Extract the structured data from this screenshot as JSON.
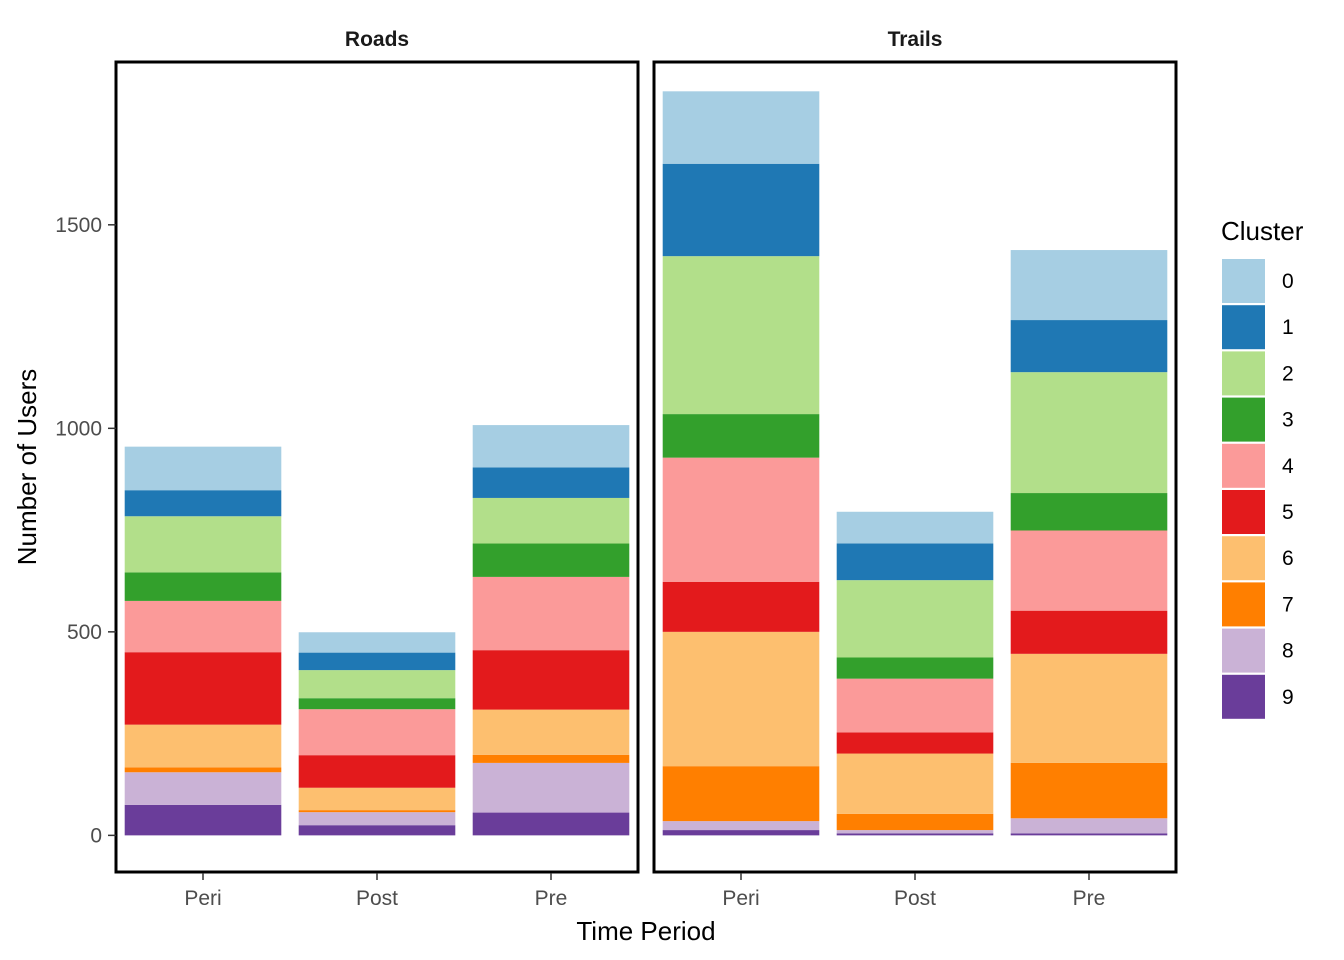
{
  "chart_data": {
    "type": "bar",
    "stacked": true,
    "facets": [
      "Roads",
      "Trails"
    ],
    "categories": [
      "Peri",
      "Post",
      "Pre"
    ],
    "xlabel": "Time Period",
    "ylabel": "Number of Users",
    "ylim": [
      -90,
      1900
    ],
    "yticks": [
      0,
      500,
      1000,
      1500
    ],
    "legend": {
      "title": "Cluster",
      "position": "right",
      "entries": [
        "0",
        "1",
        "2",
        "3",
        "4",
        "5",
        "6",
        "7",
        "8",
        "9"
      ]
    },
    "colors": {
      "0": "#a6cee3",
      "1": "#1f78b4",
      "2": "#b2df8a",
      "3": "#33a02c",
      "4": "#fb9a99",
      "5": "#e31a1c",
      "6": "#fdbf6f",
      "7": "#ff7f00",
      "8": "#cab2d6",
      "9": "#6a3d9a"
    },
    "grid": false,
    "data": {
      "Roads": {
        "Peri": {
          "9": 75,
          "8": 80,
          "7": 12,
          "6": 105,
          "5": 178,
          "4": 126,
          "3": 70,
          "2": 138,
          "1": 64,
          "0": 107
        },
        "Post": {
          "9": 25,
          "8": 32,
          "7": 5,
          "6": 55,
          "5": 80,
          "4": 113,
          "3": 27,
          "2": 69,
          "1": 43,
          "0": 50
        },
        "Pre": {
          "9": 56,
          "8": 122,
          "7": 20,
          "6": 111,
          "5": 146,
          "4": 180,
          "3": 82,
          "2": 112,
          "1": 75,
          "0": 104
        }
      },
      "Trails": {
        "Peri": {
          "9": 13,
          "8": 22,
          "7": 135,
          "6": 330,
          "5": 123,
          "4": 305,
          "3": 107,
          "2": 388,
          "1": 227,
          "0": 178
        },
        "Post": {
          "9": 5,
          "8": 8,
          "7": 40,
          "6": 148,
          "5": 52,
          "4": 132,
          "3": 52,
          "2": 190,
          "1": 90,
          "0": 78
        },
        "Pre": {
          "9": 5,
          "8": 37,
          "7": 136,
          "6": 268,
          "5": 106,
          "4": 197,
          "3": 92,
          "2": 297,
          "1": 128,
          "0": 172
        }
      }
    }
  }
}
